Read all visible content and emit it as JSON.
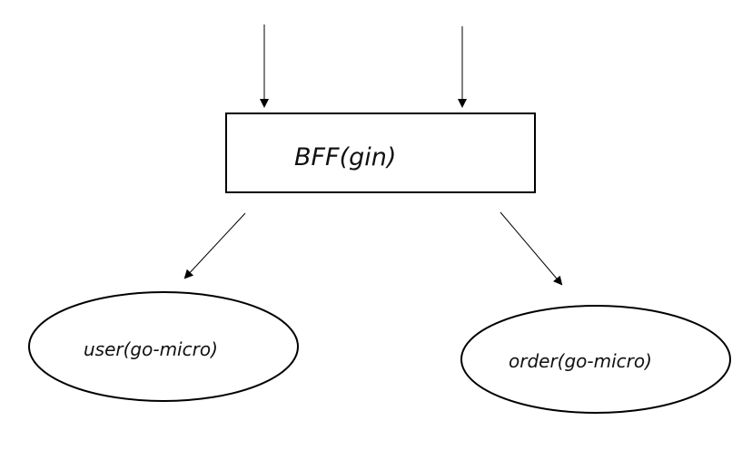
{
  "diagram": {
    "gateway": {
      "label": "BFF(gin)"
    },
    "services": [
      {
        "label": "user(go-micro)"
      },
      {
        "label": "order(go-micro)"
      }
    ],
    "style": {
      "stroke": "#000000",
      "background": "#ffffff",
      "text": "#111111"
    }
  }
}
